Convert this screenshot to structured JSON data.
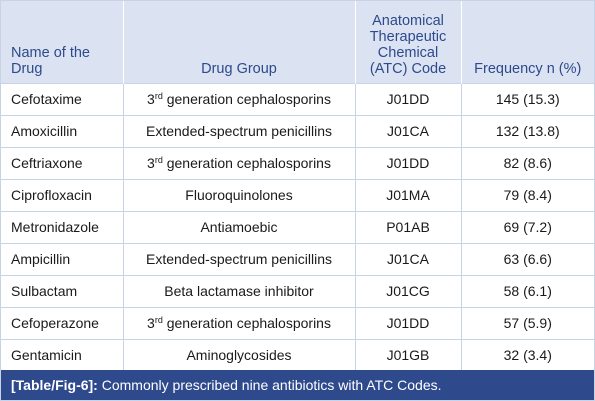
{
  "table": {
    "headers": {
      "name": "Name of the Drug",
      "group": "Drug Group",
      "atc": "Anatomical Therapeutic Chemical (ATC) Code",
      "frequency": "Frequency n (%)"
    },
    "rows": [
      {
        "name": "Cefotaxime",
        "group_sup": "rd",
        "group_num": "3",
        "group": "generation cephalosporins",
        "atc": "J01DD",
        "frequency": "145 (15.3)"
      },
      {
        "name": "Amoxicillin",
        "group": "Extended-spectrum penicillins",
        "atc": "J01CA",
        "frequency": "132 (13.8)"
      },
      {
        "name": "Ceftriaxone",
        "group_sup": "rd",
        "group_num": "3",
        "group": "generation cephalosporins",
        "atc": "J01DD",
        "frequency": "82 (8.6)"
      },
      {
        "name": "Ciprofloxacin",
        "group": "Fluoroquinolones",
        "atc": "J01MA",
        "frequency": "79 (8.4)"
      },
      {
        "name": "Metronidazole",
        "group": "Antiamoebic",
        "atc": "P01AB",
        "frequency": "69 (7.2)"
      },
      {
        "name": "Ampicillin",
        "group": "Extended-spectrum penicillins",
        "atc": "J01CA",
        "frequency": "63 (6.6)"
      },
      {
        "name": "Sulbactam",
        "group": "Beta lactamase inhibitor",
        "atc": "J01CG",
        "frequency": "58 (6.1)"
      },
      {
        "name": "Cefoperazone",
        "group_sup": "rd",
        "group_num": "3",
        "group": "generation cephalosporins",
        "atc": "J01DD",
        "frequency": "57 (5.9)"
      },
      {
        "name": "Gentamicin",
        "group": "Aminoglycosides",
        "atc": "J01GB",
        "frequency": "32 (3.4)"
      }
    ]
  },
  "caption": {
    "label": "[Table/Fig-6]:",
    "text": "Commonly prescribed nine antibiotics with ATC Codes."
  },
  "colors": {
    "header_bg": "#dbe3f2",
    "header_text": "#2e4a8c",
    "caption_bg": "#2e4a8c",
    "grid": "#c9d3e6"
  }
}
